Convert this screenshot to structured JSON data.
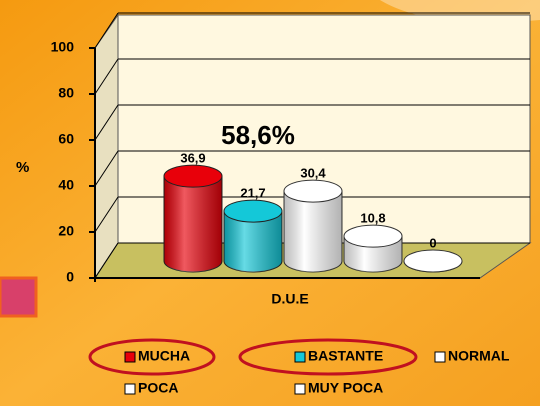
{
  "chart_data": {
    "type": "bar",
    "annotation": "58,6%",
    "ylabel": "%",
    "categories": [
      "D.U.E"
    ],
    "ylim": [
      0,
      100
    ],
    "yticks": [
      0,
      20,
      40,
      60,
      80,
      100
    ],
    "grid": true,
    "legend": "bottom",
    "series": [
      {
        "name": "MUCHA",
        "color": "#e8000a",
        "values": [
          36.9
        ],
        "value_labels": [
          "36,9"
        ]
      },
      {
        "name": "BASTANTE",
        "color": "#14c8d8",
        "values": [
          21.7
        ],
        "value_labels": [
          "21,7"
        ]
      },
      {
        "name": "NORMAL",
        "color": "#ffffff",
        "values": [
          30.4
        ],
        "value_labels": [
          "30,4"
        ]
      },
      {
        "name": "POCA",
        "color": "#ffffff",
        "values": [
          10.8
        ],
        "value_labels": [
          "10,8"
        ]
      },
      {
        "name": "MUY POCA",
        "color": "#ffffff",
        "values": [
          0
        ],
        "value_labels": [
          "0"
        ]
      }
    ]
  }
}
